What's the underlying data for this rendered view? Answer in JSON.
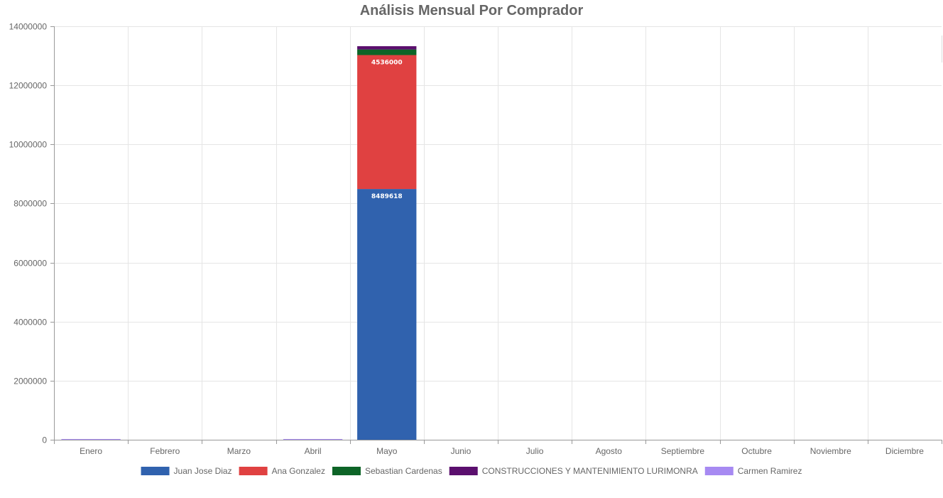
{
  "chart_data": {
    "type": "bar",
    "stacked": true,
    "title": "Análisis Mensual Por Comprador",
    "xlabel": "",
    "ylabel": "",
    "categories": [
      "Enero",
      "Febrero",
      "Marzo",
      "Abril",
      "Mayo",
      "Junio",
      "Julio",
      "Agosto",
      "Septiembre",
      "Octubre",
      "Noviembre",
      "Diciembre"
    ],
    "ylim": [
      0,
      14000000
    ],
    "yticks": [
      "0",
      "2000000",
      "4000000",
      "6000000",
      "8000000",
      "10000000",
      "12000000",
      "14000000"
    ],
    "grid": true,
    "legend": "bottom",
    "series": [
      {
        "name": "Juan Jose Diaz",
        "color": "#3062ae",
        "values": [
          0,
          0,
          0,
          0,
          8489618,
          0,
          0,
          0,
          0,
          0,
          0,
          0
        ],
        "labels": [
          "",
          "",
          "",
          "",
          "8489618",
          "",
          "",
          "",
          "",
          "",
          "",
          ""
        ]
      },
      {
        "name": "Ana Gonzalez",
        "color": "#e04141",
        "values": [
          0,
          0,
          0,
          0,
          4536000,
          0,
          0,
          0,
          0,
          0,
          0,
          0
        ],
        "labels": [
          "",
          "",
          "",
          "",
          "4536000",
          "",
          "",
          "",
          "",
          "",
          "",
          ""
        ]
      },
      {
        "name": "Sebastian Cardenas",
        "color": "#0d6427",
        "values": [
          0,
          0,
          0,
          0,
          190000,
          0,
          0,
          0,
          0,
          0,
          0,
          0
        ],
        "labels": [
          "",
          "",
          "",
          "",
          "",
          "",
          "",
          "",
          "",
          "",
          "",
          ""
        ]
      },
      {
        "name": "CONSTRUCCIONES Y MANTENIMIENTO LURIMONRA",
        "color": "#5b0f6e",
        "values": [
          0,
          0,
          0,
          0,
          110000,
          0,
          0,
          0,
          0,
          0,
          0,
          0
        ],
        "labels": [
          "",
          "",
          "",
          "",
          "",
          "",
          "",
          "",
          "",
          "",
          "",
          ""
        ]
      },
      {
        "name": "Carmen Ramirez",
        "color": "#a78af2",
        "values": [
          25000,
          0,
          0,
          25000,
          0,
          0,
          0,
          0,
          0,
          0,
          0,
          0
        ],
        "labels": [
          "",
          "",
          "",
          "",
          "",
          "",
          "",
          "",
          "",
          "",
          "",
          ""
        ]
      }
    ]
  }
}
